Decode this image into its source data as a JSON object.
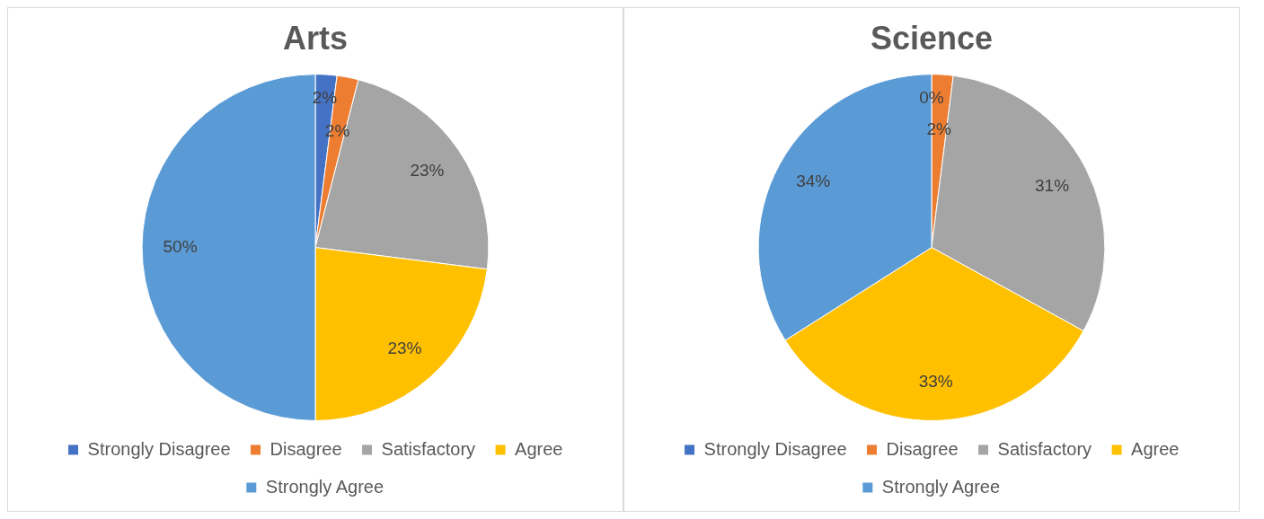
{
  "chart_data": [
    {
      "type": "pie",
      "title": "Arts",
      "categories": [
        "Strongly Disagree",
        "Disagree",
        "Satisfactory",
        "Agree",
        "Strongly Agree"
      ],
      "values": [
        2,
        2,
        23,
        23,
        50
      ],
      "value_labels": [
        "2%",
        "2%",
        "23%",
        "23%",
        "50%"
      ],
      "colors": [
        "#4472c4",
        "#ed7d31",
        "#a5a5a5",
        "#ffc000",
        "#5b9bd5"
      ],
      "legend": "bottom"
    },
    {
      "type": "pie",
      "title": "Science",
      "categories": [
        "Strongly Disagree",
        "Disagree",
        "Satisfactory",
        "Agree",
        "Strongly Agree"
      ],
      "values": [
        0,
        2,
        31,
        33,
        34
      ],
      "value_labels": [
        "0%",
        "2%",
        "31%",
        "33%",
        "34%"
      ],
      "colors": [
        "#4472c4",
        "#ed7d31",
        "#a5a5a5",
        "#ffc000",
        "#5b9bd5"
      ],
      "legend": "bottom"
    }
  ]
}
